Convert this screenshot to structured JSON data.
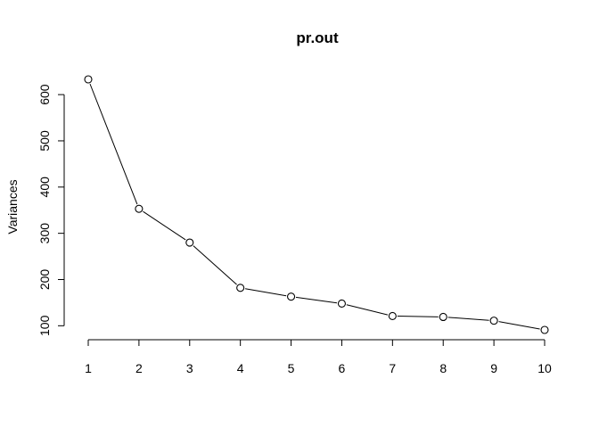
{
  "chart_data": {
    "type": "line",
    "title": "pr.out",
    "xlabel": "",
    "ylabel": "Variances",
    "x": [
      1,
      2,
      3,
      4,
      5,
      6,
      7,
      8,
      9,
      10
    ],
    "values": [
      633,
      353,
      280,
      182,
      163,
      148,
      121,
      119,
      111,
      91
    ],
    "xticks": [
      "1",
      "2",
      "3",
      "4",
      "5",
      "6",
      "7",
      "8",
      "9",
      "10"
    ],
    "yticks": [
      100,
      200,
      300,
      400,
      500,
      600
    ],
    "ylim": [
      91,
      633
    ],
    "markers": "open-circle",
    "grid": false,
    "line_color": "#000000",
    "point_fill": "#ffffff"
  }
}
